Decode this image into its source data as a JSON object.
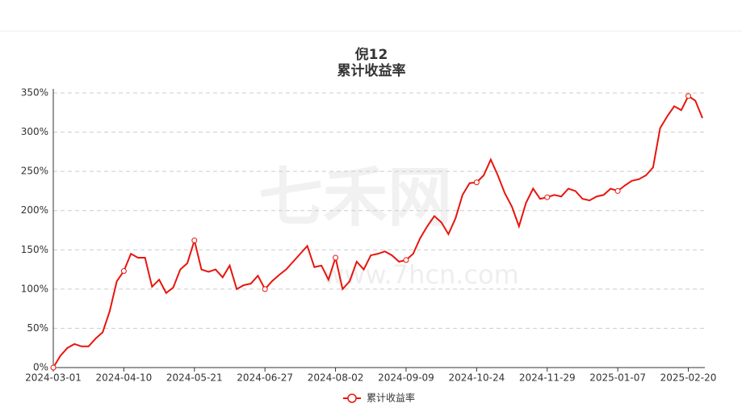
{
  "chart_data": {
    "type": "line",
    "title": "倪12",
    "subtitle": "累计收益率",
    "watermark": "七禾网",
    "watermark_url": "www.7hcn.com",
    "categories": [
      "2024-03-01",
      null,
      null,
      null,
      null,
      null,
      null,
      null,
      null,
      null,
      "2024-04-10",
      null,
      null,
      null,
      null,
      null,
      null,
      null,
      null,
      null,
      "2024-05-21",
      null,
      null,
      null,
      null,
      null,
      null,
      null,
      null,
      null,
      "2024-06-27",
      null,
      null,
      null,
      null,
      null,
      null,
      null,
      null,
      null,
      "2024-08-02",
      null,
      null,
      null,
      null,
      null,
      null,
      null,
      null,
      null,
      "2024-09-09",
      null,
      null,
      null,
      null,
      null,
      null,
      null,
      null,
      null,
      "2024-10-24",
      null,
      null,
      null,
      null,
      null,
      null,
      null,
      null,
      null,
      "2024-11-29",
      null,
      null,
      null,
      null,
      null,
      null,
      null,
      null,
      null,
      "2025-01-07",
      null,
      null,
      null,
      null,
      null,
      null,
      null,
      null,
      null,
      "2025-02-20",
      null,
      null
    ],
    "series": [
      {
        "name": "累计收益率",
        "color": "#e8150d",
        "values": [
          0,
          15,
          25,
          30,
          27,
          27,
          37,
          45,
          72,
          110,
          123,
          145,
          140,
          140,
          103,
          112,
          95,
          102,
          125,
          133,
          162,
          125,
          122,
          125,
          115,
          130,
          100,
          105,
          107,
          117,
          100,
          110,
          118,
          125,
          135,
          145,
          155,
          128,
          130,
          112,
          140,
          100,
          110,
          135,
          125,
          143,
          145,
          148,
          143,
          135,
          137,
          145,
          165,
          180,
          193,
          185,
          170,
          190,
          220,
          235,
          236,
          245,
          265,
          245,
          222,
          205,
          180,
          210,
          228,
          215,
          217,
          220,
          218,
          228,
          225,
          215,
          213,
          218,
          220,
          228,
          225,
          232,
          238,
          240,
          245,
          255,
          305,
          320,
          333,
          328,
          346,
          340,
          318
        ]
      }
    ],
    "ylim": [
      0,
      350
    ],
    "yticks": [
      {
        "value": 0,
        "label": "0%"
      },
      {
        "value": 50,
        "label": "50%"
      },
      {
        "value": 100,
        "label": "100%"
      },
      {
        "value": 150,
        "label": "150%"
      },
      {
        "value": 200,
        "label": "200%"
      },
      {
        "value": 250,
        "label": "250%"
      },
      {
        "value": 300,
        "label": "300%"
      },
      {
        "value": 350,
        "label": "350%"
      }
    ],
    "grid": true
  }
}
